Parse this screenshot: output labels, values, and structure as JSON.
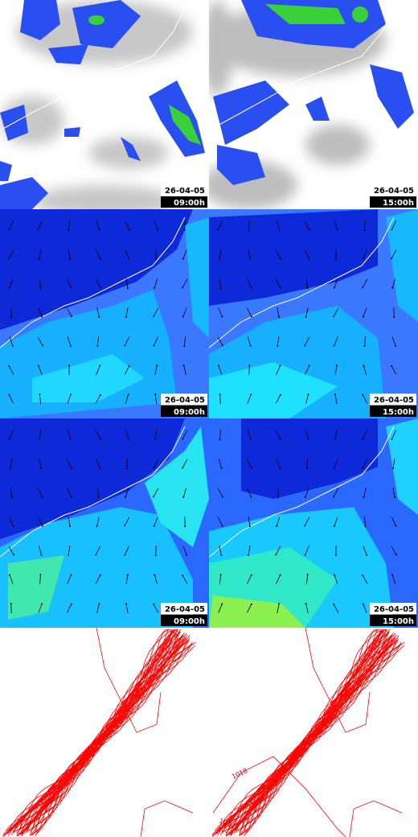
{
  "panels": [
    [
      {
        "date": "26-04-05",
        "time": "09:00h"
      },
      {
        "date": "26-04-05",
        "time": "15:00h"
      }
    ],
    [
      {
        "date": "26-04-05",
        "time": "09:00h"
      },
      {
        "date": "26-04-05",
        "time": "15:00h"
      }
    ],
    [
      {
        "date": "26-04-05",
        "time": "09:00h"
      },
      {
        "date": "26-04-05",
        "time": "15:00h"
      }
    ]
  ],
  "pressure_contour_labels": [
    "1018",
    "1018"
  ]
}
